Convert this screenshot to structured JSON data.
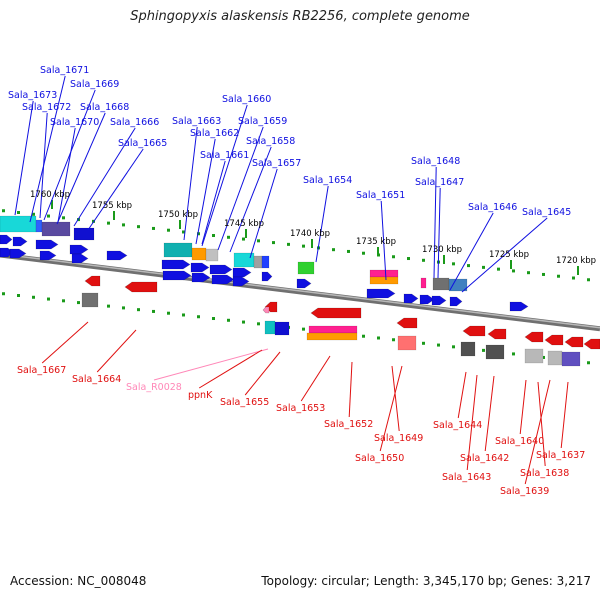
{
  "title": "Sphingopyxis alaskensis RB2256, complete genome",
  "footer": {
    "accession": "Accession: NC_008048",
    "topology": "Topology: circular; Length: 3,345,170 bp; Genes: 3,217"
  },
  "colors": {
    "forward": "#1010e0",
    "reverse": "#e01010",
    "rna": "#ff88b8",
    "backbone": "#888888",
    "ticks": "#1a9a1a"
  },
  "scale_labels": [
    "1760 kbp",
    "1755 kbp",
    "1750 kbp",
    "1745 kbp",
    "1740 kbp",
    "1735 kbp",
    "1730 kbp",
    "1725 kbp",
    "1720 kbp"
  ],
  "forward_genes": [
    "Sala_1671",
    "Sala_1673",
    "Sala_1669",
    "Sala_1672",
    "Sala_1668",
    "Sala_1670",
    "Sala_1666",
    "Sala_1665",
    "Sala_1660",
    "Sala_1663",
    "Sala_1659",
    "Sala_1662",
    "Sala_1658",
    "Sala_1661",
    "Sala_1657",
    "Sala_1654",
    "Sala_1651",
    "Sala_1648",
    "Sala_1647",
    "Sala_1646",
    "Sala_1645"
  ],
  "reverse_genes": [
    "Sala_1667",
    "Sala_1664",
    "Sala_R0028",
    "ppnK",
    "Sala_1655",
    "Sala_1653",
    "Sala_1652",
    "Sala_1649",
    "Sala_1650",
    "Sala_1644",
    "Sala_1643",
    "Sala_1642",
    "Sala_1640",
    "Sala_1638",
    "Sala_1637",
    "Sala_1639"
  ]
}
